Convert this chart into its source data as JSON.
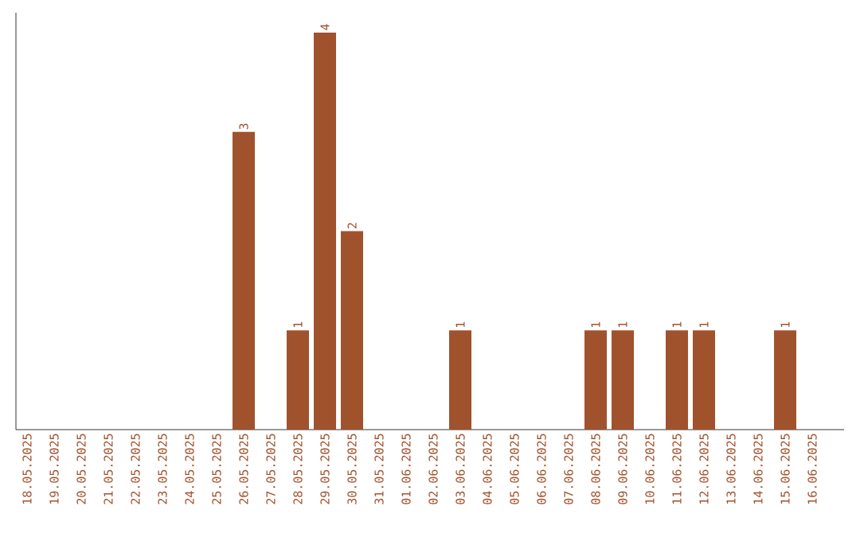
{
  "chart_data": {
    "type": "bar",
    "categories": [
      "18.05.2025",
      "19.05.2025",
      "20.05.2025",
      "21.05.2025",
      "22.05.2025",
      "23.05.2025",
      "24.05.2025",
      "25.05.2025",
      "26.05.2025",
      "27.05.2025",
      "28.05.2025",
      "29.05.2025",
      "30.05.2025",
      "31.05.2025",
      "01.06.2025",
      "02.06.2025",
      "03.06.2025",
      "04.06.2025",
      "05.06.2025",
      "06.06.2025",
      "07.06.2025",
      "08.06.2025",
      "09.06.2025",
      "10.06.2025",
      "11.06.2025",
      "12.06.2025",
      "13.06.2025",
      "14.06.2025",
      "15.06.2025",
      "16.06.2025"
    ],
    "values": [
      0,
      0,
      0,
      0,
      0,
      0,
      0,
      0,
      3,
      0,
      1,
      4,
      2,
      0,
      0,
      0,
      1,
      0,
      0,
      0,
      0,
      1,
      1,
      0,
      1,
      1,
      0,
      0,
      1,
      0
    ],
    "value_labels": [
      null,
      null,
      null,
      null,
      null,
      null,
      null,
      null,
      "3",
      null,
      "1",
      "4",
      "2",
      null,
      null,
      null,
      "1",
      null,
      null,
      null,
      null,
      "1",
      "1",
      null,
      "1",
      "1",
      null,
      null,
      "1",
      null
    ],
    "color": "#a0522d",
    "tick_labels": "x",
    "grid": false
  }
}
